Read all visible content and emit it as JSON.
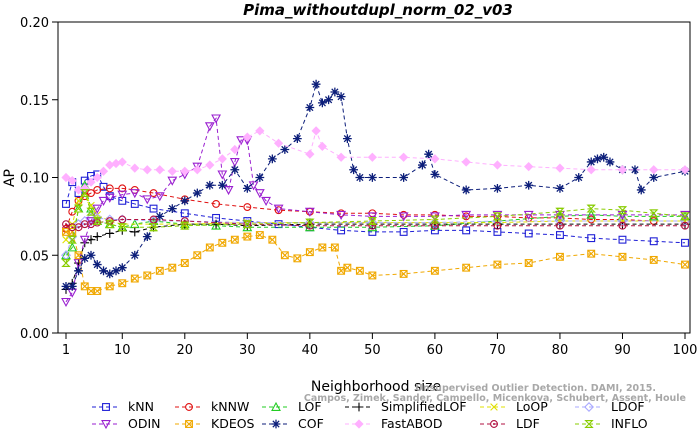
{
  "chart_data": {
    "type": "line",
    "title": "Pima_withoutdupl_norm_02_v03",
    "xlabel": "Neighborhood size",
    "ylabel": "AP",
    "xlim": [
      1,
      100
    ],
    "ylim": [
      0,
      0.2
    ],
    "xticks": [
      "1",
      "10",
      "20",
      "30",
      "40",
      "50",
      "60",
      "70",
      "80",
      "90",
      "100"
    ],
    "yticks": [
      "0.00",
      "0.05",
      "0.10",
      "0.15",
      "0.20"
    ],
    "grid": false,
    "legend_position": "bottom",
    "series": [
      {
        "name": "kNN",
        "color": "#1f1fd6",
        "marker": "square",
        "x": [
          1,
          2,
          3,
          4,
          5,
          6,
          7,
          8,
          10,
          12,
          15,
          20,
          25,
          30,
          35,
          40,
          45,
          50,
          55,
          60,
          65,
          70,
          75,
          80,
          85,
          90,
          95,
          100
        ],
        "y": [
          0.083,
          0.097,
          0.09,
          0.098,
          0.101,
          0.102,
          0.094,
          0.088,
          0.085,
          0.083,
          0.08,
          0.077,
          0.074,
          0.072,
          0.07,
          0.068,
          0.066,
          0.065,
          0.065,
          0.066,
          0.066,
          0.065,
          0.064,
          0.063,
          0.061,
          0.06,
          0.059,
          0.058
        ]
      },
      {
        "name": "kNNW",
        "color": "#e01010",
        "marker": "circle",
        "x": [
          1,
          2,
          3,
          4,
          5,
          6,
          8,
          10,
          12,
          15,
          20,
          25,
          30,
          35,
          40,
          45,
          50,
          55,
          60,
          65,
          70,
          75,
          80,
          85,
          90,
          95,
          100
        ],
        "y": [
          0.067,
          0.078,
          0.085,
          0.088,
          0.09,
          0.092,
          0.093,
          0.093,
          0.092,
          0.09,
          0.086,
          0.083,
          0.081,
          0.079,
          0.078,
          0.077,
          0.077,
          0.076,
          0.076,
          0.075,
          0.075,
          0.074,
          0.074,
          0.073,
          0.073,
          0.072,
          0.072
        ]
      },
      {
        "name": "LOF",
        "color": "#22cc22",
        "marker": "triangle-up",
        "x": [
          1,
          2,
          3,
          4,
          5,
          6,
          8,
          10,
          12,
          15,
          20,
          25,
          30,
          40,
          50,
          60,
          70,
          80,
          85,
          90,
          95,
          100
        ],
        "y": [
          0.05,
          0.055,
          0.08,
          0.095,
          0.08,
          0.072,
          0.07,
          0.068,
          0.07,
          0.072,
          0.07,
          0.069,
          0.068,
          0.068,
          0.068,
          0.069,
          0.072,
          0.075,
          0.076,
          0.075,
          0.075,
          0.075
        ]
      },
      {
        "name": "SimplifiedLOF",
        "color": "#000000",
        "marker": "plus",
        "x": [
          1,
          2,
          3,
          4,
          5,
          6,
          8,
          10,
          12,
          15,
          20,
          25,
          30,
          40,
          50,
          60,
          70,
          80,
          90,
          100
        ],
        "y": [
          0.028,
          0.032,
          0.045,
          0.058,
          0.06,
          0.062,
          0.064,
          0.066,
          0.065,
          0.068,
          0.07,
          0.07,
          0.069,
          0.07,
          0.07,
          0.07,
          0.07,
          0.07,
          0.07,
          0.07
        ]
      },
      {
        "name": "LoOP",
        "color": "#e0e000",
        "marker": "cross",
        "x": [
          1,
          2,
          3,
          4,
          5,
          6,
          8,
          10,
          15,
          20,
          30,
          40,
          50,
          60,
          70,
          80,
          90,
          100
        ],
        "y": [
          0.06,
          0.07,
          0.085,
          0.09,
          0.082,
          0.076,
          0.072,
          0.07,
          0.07,
          0.07,
          0.071,
          0.071,
          0.071,
          0.071,
          0.071,
          0.072,
          0.072,
          0.072
        ]
      },
      {
        "name": "LDOF",
        "color": "#aaaaff",
        "marker": "diamond",
        "x": [
          1,
          2,
          3,
          4,
          5,
          6,
          8,
          10,
          15,
          20,
          30,
          40,
          50,
          60,
          70,
          80,
          90,
          100
        ],
        "y": [
          0.05,
          0.062,
          0.07,
          0.072,
          0.074,
          0.074,
          0.073,
          0.073,
          0.072,
          0.072,
          0.071,
          0.071,
          0.071,
          0.071,
          0.072,
          0.072,
          0.072,
          0.072
        ]
      },
      {
        "name": "ODIN",
        "color": "#9a1fd0",
        "marker": "triangle-down",
        "x": [
          1,
          2,
          3,
          4,
          5,
          6,
          7,
          8,
          10,
          12,
          14,
          16,
          18,
          20,
          22,
          24,
          25,
          26,
          27,
          28,
          29,
          30,
          31,
          32,
          33,
          35,
          40,
          45,
          50,
          55,
          60,
          65,
          70,
          75,
          80,
          90,
          100
        ],
        "y": [
          0.02,
          0.026,
          0.045,
          0.06,
          0.072,
          0.08,
          0.085,
          0.087,
          0.089,
          0.09,
          0.086,
          0.088,
          0.098,
          0.102,
          0.107,
          0.133,
          0.138,
          0.102,
          0.092,
          0.11,
          0.124,
          0.124,
          0.095,
          0.09,
          0.085,
          0.08,
          0.078,
          0.076,
          0.075,
          0.075,
          0.075,
          0.076,
          0.076,
          0.076,
          0.076,
          0.076,
          0.076
        ]
      },
      {
        "name": "KDEOS",
        "color": "#f0a800",
        "marker": "square-x",
        "x": [
          1,
          2,
          3,
          4,
          5,
          6,
          8,
          10,
          12,
          14,
          16,
          18,
          20,
          22,
          24,
          26,
          28,
          30,
          32,
          34,
          36,
          38,
          40,
          42,
          44,
          45,
          46,
          48,
          50,
          55,
          60,
          65,
          70,
          75,
          80,
          85,
          90,
          95,
          100
        ],
        "y": [
          0.065,
          0.065,
          0.05,
          0.03,
          0.027,
          0.027,
          0.03,
          0.032,
          0.035,
          0.037,
          0.04,
          0.042,
          0.045,
          0.05,
          0.055,
          0.058,
          0.06,
          0.062,
          0.063,
          0.06,
          0.05,
          0.048,
          0.052,
          0.055,
          0.055,
          0.04,
          0.042,
          0.04,
          0.037,
          0.038,
          0.04,
          0.042,
          0.044,
          0.045,
          0.049,
          0.051,
          0.049,
          0.047,
          0.044
        ]
      },
      {
        "name": "COF",
        "color": "#0c1e7a",
        "marker": "asterisk",
        "x": [
          1,
          2,
          3,
          4,
          5,
          6,
          7,
          8,
          9,
          10,
          12,
          14,
          16,
          18,
          20,
          22,
          24,
          26,
          28,
          30,
          32,
          34,
          36,
          38,
          40,
          41,
          42,
          43,
          44,
          45,
          46,
          47,
          48,
          50,
          55,
          58,
          59,
          60,
          65,
          70,
          75,
          80,
          83,
          85,
          86,
          87,
          88,
          90,
          92,
          93,
          95,
          100
        ],
        "y": [
          0.03,
          0.03,
          0.04,
          0.048,
          0.05,
          0.044,
          0.04,
          0.038,
          0.04,
          0.042,
          0.05,
          0.062,
          0.075,
          0.08,
          0.085,
          0.09,
          0.095,
          0.095,
          0.105,
          0.093,
          0.1,
          0.112,
          0.118,
          0.125,
          0.145,
          0.16,
          0.148,
          0.15,
          0.155,
          0.152,
          0.125,
          0.105,
          0.1,
          0.1,
          0.1,
          0.108,
          0.115,
          0.102,
          0.092,
          0.093,
          0.095,
          0.093,
          0.1,
          0.11,
          0.112,
          0.113,
          0.11,
          0.105,
          0.105,
          0.092,
          0.1,
          0.104
        ]
      },
      {
        "name": "FastABOD",
        "color": "#ffb0ff",
        "marker": "diamond-filled",
        "x": [
          1,
          2,
          3,
          4,
          5,
          6,
          7,
          8,
          9,
          10,
          12,
          14,
          16,
          18,
          20,
          22,
          24,
          26,
          28,
          30,
          32,
          35,
          40,
          41,
          42,
          45,
          50,
          55,
          60,
          65,
          70,
          75,
          80,
          85,
          90,
          95,
          100
        ],
        "y": [
          0.1,
          0.098,
          0.092,
          0.093,
          0.097,
          0.1,
          0.104,
          0.108,
          0.109,
          0.11,
          0.106,
          0.105,
          0.105,
          0.104,
          0.104,
          0.105,
          0.108,
          0.112,
          0.118,
          0.126,
          0.13,
          0.122,
          0.115,
          0.13,
          0.12,
          0.113,
          0.113,
          0.113,
          0.112,
          0.11,
          0.108,
          0.107,
          0.106,
          0.105,
          0.105,
          0.105,
          0.105
        ]
      },
      {
        "name": "LDF",
        "color": "#b01040",
        "marker": "circle-dot",
        "x": [
          1,
          2,
          3,
          4,
          5,
          6,
          8,
          10,
          15,
          20,
          30,
          40,
          50,
          60,
          70,
          80,
          90,
          100
        ],
        "y": [
          0.07,
          0.068,
          0.068,
          0.07,
          0.07,
          0.071,
          0.072,
          0.073,
          0.073,
          0.072,
          0.07,
          0.069,
          0.069,
          0.069,
          0.069,
          0.069,
          0.069,
          0.069
        ]
      },
      {
        "name": "INFLO",
        "color": "#88cc00",
        "marker": "hourglass",
        "x": [
          1,
          2,
          3,
          4,
          5,
          6,
          8,
          10,
          15,
          20,
          30,
          40,
          50,
          60,
          70,
          80,
          85,
          90,
          95,
          100
        ],
        "y": [
          0.045,
          0.06,
          0.08,
          0.09,
          0.078,
          0.072,
          0.07,
          0.068,
          0.068,
          0.069,
          0.07,
          0.071,
          0.072,
          0.073,
          0.075,
          0.078,
          0.08,
          0.079,
          0.077,
          0.075
        ]
      }
    ],
    "annotation": "Campos, Zimek, Sander, Campello, Micenkova, Schubert, Assent, Houle",
    "annotation_2": "Unsupervised Outlier Detection. DAMI, 2015."
  }
}
